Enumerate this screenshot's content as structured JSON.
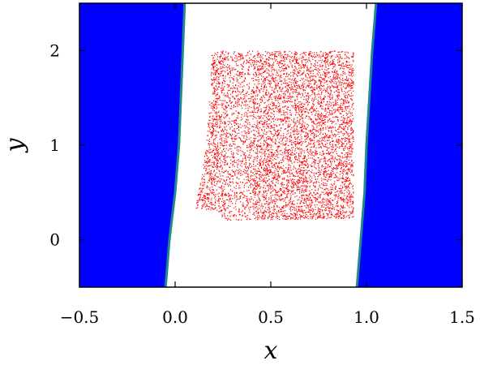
{
  "chart_data": {
    "type": "scatter",
    "title": "",
    "xlabel": "x",
    "ylabel": "y",
    "xlim": [
      -0.5,
      1.5
    ],
    "ylim": [
      -0.5,
      2.5
    ],
    "x_ticks": [
      -0.5,
      0.0,
      0.5,
      1.0,
      1.5
    ],
    "x_tick_labels": [
      "−0.5",
      "0.0",
      "0.5",
      "1.0",
      "1.5"
    ],
    "y_ticks": [
      0,
      1,
      2
    ],
    "y_tick_labels": [
      "0",
      "1",
      "2"
    ],
    "grid": false,
    "legend": "none",
    "regions": [
      {
        "name": "left-blue-region",
        "color": "#0000ff",
        "edge_color": "#1e8a8a",
        "boundary": [
          [
            0.05,
            2.5
          ],
          [
            0.04,
            2.0
          ],
          [
            0.02,
            1.0
          ],
          [
            0.0,
            0.5
          ],
          [
            -0.03,
            0.0
          ],
          [
            -0.05,
            -0.5
          ]
        ]
      },
      {
        "name": "right-blue-region",
        "color": "#0000ff",
        "edge_color": "#1e8a8a",
        "boundary": [
          [
            1.05,
            2.5
          ],
          [
            1.03,
            2.0
          ],
          [
            1.0,
            1.0
          ],
          [
            0.99,
            0.5
          ],
          [
            0.97,
            0.0
          ],
          [
            0.95,
            -0.5
          ]
        ]
      }
    ],
    "scatter_region": {
      "name": "red-point-cloud",
      "color": "#ff0000",
      "outline": [
        [
          0.19,
          2.0
        ],
        [
          0.93,
          2.0
        ],
        [
          0.93,
          0.23
        ],
        [
          0.25,
          0.21
        ],
        [
          0.21,
          0.32
        ],
        [
          0.1,
          0.33
        ],
        [
          0.13,
          0.6
        ],
        [
          0.16,
          1.0
        ],
        [
          0.18,
          1.5
        ]
      ],
      "approx_count": 24000
    }
  }
}
